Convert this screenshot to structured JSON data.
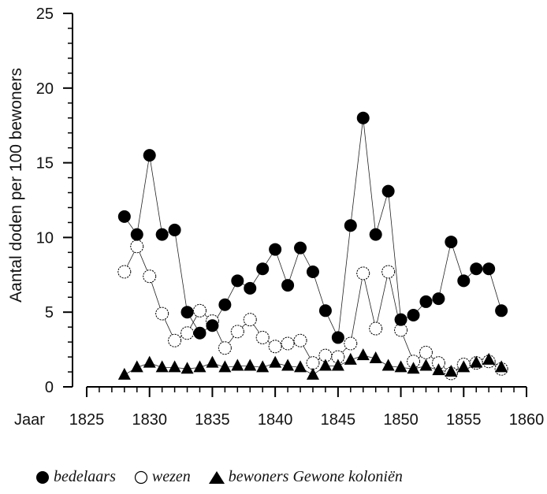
{
  "chart_data": {
    "type": "line",
    "xlabel": "Jaar",
    "ylabel": "Aantal doden per 100 bewoners",
    "xlim": [
      1825,
      1860
    ],
    "ylim": [
      0,
      25
    ],
    "x_ticks": [
      "1825",
      "1830",
      "1835",
      "1840",
      "1845",
      "1850",
      "1855",
      "1860"
    ],
    "y_ticks": [
      "0",
      "5",
      "10",
      "15",
      "20",
      "25"
    ],
    "legend_position": "bottom",
    "grid": false,
    "series": [
      {
        "name": "bedelaars",
        "marker": "filled-circle",
        "color": "#000000",
        "x": [
          1828,
          1829,
          1830,
          1831,
          1832,
          1833,
          1834,
          1835,
          1836,
          1837,
          1838,
          1839,
          1840,
          1841,
          1842,
          1843,
          1844,
          1845,
          1846,
          1847,
          1848,
          1849,
          1850,
          1851,
          1852,
          1853,
          1854,
          1855,
          1856,
          1857,
          1858
        ],
        "y": [
          11.4,
          10.2,
          15.5,
          10.2,
          10.5,
          5.0,
          3.6,
          4.1,
          5.5,
          7.1,
          6.6,
          7.9,
          9.2,
          6.8,
          9.3,
          7.7,
          5.1,
          3.3,
          10.8,
          18.0,
          10.2,
          13.1,
          4.5,
          4.8,
          5.7,
          5.9,
          9.7,
          7.1,
          7.9,
          7.9,
          5.1
        ]
      },
      {
        "name": "wezen",
        "marker": "open-circle",
        "color": "#000000",
        "x": [
          1828,
          1829,
          1830,
          1831,
          1832,
          1833,
          1834,
          1835,
          1836,
          1837,
          1838,
          1839,
          1840,
          1841,
          1842,
          1843,
          1844,
          1845,
          1846,
          1847,
          1848,
          1849,
          1850,
          1851,
          1852,
          1853,
          1854,
          1855,
          1856,
          1857,
          1858
        ],
        "y": [
          7.7,
          9.4,
          7.4,
          4.9,
          3.1,
          3.6,
          5.1,
          4.4,
          2.6,
          3.7,
          4.5,
          3.3,
          2.7,
          2.9,
          3.1,
          1.6,
          2.1,
          2.0,
          2.9,
          7.6,
          3.9,
          7.7,
          3.8,
          1.7,
          2.3,
          1.6,
          0.9,
          1.5,
          1.6,
          1.7,
          1.2
        ]
      },
      {
        "name": "bewoners Gewone koloniën",
        "marker": "filled-triangle",
        "color": "#000000",
        "x": [
          1828,
          1829,
          1830,
          1831,
          1832,
          1833,
          1834,
          1835,
          1836,
          1837,
          1838,
          1839,
          1840,
          1841,
          1842,
          1843,
          1844,
          1845,
          1846,
          1847,
          1848,
          1849,
          1850,
          1851,
          1852,
          1853,
          1854,
          1855,
          1856,
          1857,
          1858
        ],
        "y": [
          0.8,
          1.3,
          1.6,
          1.3,
          1.3,
          1.2,
          1.3,
          1.6,
          1.3,
          1.4,
          1.4,
          1.3,
          1.6,
          1.4,
          1.3,
          0.8,
          1.4,
          1.4,
          1.8,
          2.1,
          1.9,
          1.4,
          1.3,
          1.2,
          1.4,
          1.1,
          1.0,
          1.3,
          1.6,
          1.8,
          1.3
        ]
      }
    ]
  }
}
